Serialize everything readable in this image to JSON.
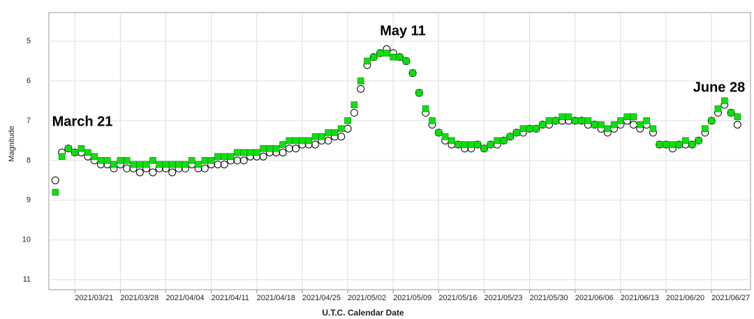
{
  "chart_data": {
    "type": "scatter",
    "y_reversed": true,
    "grid": true,
    "x_label": "U.T.C. Calendar Date",
    "y_label": "Magnitude",
    "annotations": [
      "March 21",
      "May 11",
      "June 28"
    ],
    "xlim": [
      "2021/03/17",
      "2021/07/03"
    ],
    "xticks": [
      "2021/03/21",
      "2021/03/28",
      "2021/04/04",
      "2021/04/11",
      "2021/04/18",
      "2021/04/25",
      "2021/05/02",
      "2021/05/09",
      "2021/05/16",
      "2021/05/23",
      "2021/05/30",
      "2021/06/06",
      "2021/06/13",
      "2021/06/20",
      "2021/06/27"
    ],
    "ylim": [
      11.25,
      4.28
    ],
    "yticks": [
      5,
      6,
      7,
      8,
      9,
      10,
      11
    ],
    "x": [
      "2021/03/18",
      "2021/03/19",
      "2021/03/20",
      "2021/03/21",
      "2021/03/22",
      "2021/03/23",
      "2021/03/24",
      "2021/03/25",
      "2021/03/26",
      "2021/03/27",
      "2021/03/28",
      "2021/03/29",
      "2021/03/30",
      "2021/03/31",
      "2021/04/01",
      "2021/04/02",
      "2021/04/03",
      "2021/04/04",
      "2021/04/05",
      "2021/04/06",
      "2021/04/07",
      "2021/04/08",
      "2021/04/09",
      "2021/04/10",
      "2021/04/11",
      "2021/04/12",
      "2021/04/13",
      "2021/04/14",
      "2021/04/15",
      "2021/04/16",
      "2021/04/17",
      "2021/04/18",
      "2021/04/19",
      "2021/04/20",
      "2021/04/21",
      "2021/04/22",
      "2021/04/23",
      "2021/04/24",
      "2021/04/25",
      "2021/04/26",
      "2021/04/27",
      "2021/04/28",
      "2021/04/29",
      "2021/04/30",
      "2021/05/01",
      "2021/05/02",
      "2021/05/03",
      "2021/05/04",
      "2021/05/05",
      "2021/05/06",
      "2021/05/07",
      "2021/05/08",
      "2021/05/09",
      "2021/05/10",
      "2021/05/11",
      "2021/05/12",
      "2021/05/13",
      "2021/05/14",
      "2021/05/15",
      "2021/05/16",
      "2021/05/17",
      "2021/05/18",
      "2021/05/19",
      "2021/05/20",
      "2021/05/21",
      "2021/05/22",
      "2021/05/23",
      "2021/05/24",
      "2021/05/25",
      "2021/05/26",
      "2021/05/27",
      "2021/05/28",
      "2021/05/29",
      "2021/05/30",
      "2021/05/31",
      "2021/06/01",
      "2021/06/02",
      "2021/06/03",
      "2021/06/04",
      "2021/06/05",
      "2021/06/06",
      "2021/06/07",
      "2021/06/08",
      "2021/06/09",
      "2021/06/10",
      "2021/06/11",
      "2021/06/12",
      "2021/06/13",
      "2021/06/14",
      "2021/06/15",
      "2021/06/16",
      "2021/06/17",
      "2021/06/18",
      "2021/06/19",
      "2021/06/20",
      "2021/06/21",
      "2021/06/22",
      "2021/06/23",
      "2021/06/24",
      "2021/06/25",
      "2021/06/26",
      "2021/06/27",
      "2021/06/28",
      "2021/06/29",
      "2021/06/30",
      "2021/07/01"
    ],
    "series": [
      {
        "marker": "circle",
        "color": "#000000",
        "values": [
          8.5,
          7.8,
          7.7,
          7.8,
          7.8,
          7.9,
          8.0,
          8.1,
          8.1,
          8.2,
          8.1,
          8.2,
          8.2,
          8.3,
          8.2,
          8.3,
          8.2,
          8.2,
          8.3,
          8.2,
          8.2,
          8.1,
          8.2,
          8.2,
          8.1,
          8.1,
          8.1,
          8.0,
          8.0,
          8.0,
          7.9,
          7.9,
          7.9,
          7.8,
          7.8,
          7.8,
          7.7,
          7.7,
          7.6,
          7.6,
          7.6,
          7.5,
          7.5,
          7.4,
          7.4,
          7.2,
          6.8,
          6.2,
          5.6,
          5.4,
          5.3,
          5.2,
          5.3,
          5.4,
          5.5,
          5.8,
          6.3,
          6.8,
          7.1,
          7.3,
          7.5,
          7.6,
          7.6,
          7.7,
          7.7,
          7.6,
          7.7,
          7.6,
          7.6,
          7.5,
          7.4,
          7.3,
          7.3,
          7.2,
          7.2,
          7.1,
          7.1,
          7.0,
          7.0,
          7.0,
          7.0,
          7.0,
          7.1,
          7.1,
          7.2,
          7.3,
          7.2,
          7.1,
          7.0,
          7.1,
          7.2,
          7.1,
          7.3,
          7.6,
          7.6,
          7.7,
          7.6,
          7.6,
          7.6,
          7.5,
          7.3,
          7.0,
          6.8,
          6.6,
          6.8,
          7.1
        ]
      },
      {
        "marker": "square",
        "color": "#11dd11",
        "values": [
          8.8,
          7.9,
          7.7,
          7.8,
          7.7,
          7.8,
          7.9,
          8.0,
          8.0,
          8.1,
          8.0,
          8.0,
          8.1,
          8.1,
          8.1,
          8.0,
          8.1,
          8.1,
          8.1,
          8.1,
          8.1,
          8.0,
          8.1,
          8.0,
          8.0,
          7.9,
          7.9,
          7.9,
          7.8,
          7.8,
          7.8,
          7.8,
          7.7,
          7.7,
          7.7,
          7.6,
          7.5,
          7.5,
          7.5,
          7.5,
          7.4,
          7.4,
          7.3,
          7.3,
          7.2,
          7.0,
          6.6,
          6.0,
          5.5,
          5.4,
          5.3,
          5.3,
          5.4,
          5.4,
          5.5,
          5.8,
          6.3,
          6.7,
          7.0,
          7.3,
          7.4,
          7.5,
          7.6,
          7.6,
          7.6,
          7.6,
          7.7,
          7.6,
          7.5,
          7.5,
          7.4,
          7.3,
          7.2,
          7.2,
          7.2,
          7.1,
          7.0,
          7.0,
          6.9,
          6.9,
          7.0,
          7.0,
          7.0,
          7.1,
          7.1,
          7.2,
          7.1,
          7.0,
          6.9,
          6.9,
          7.1,
          7.0,
          7.2,
          7.6,
          7.6,
          7.6,
          7.6,
          7.5,
          7.6,
          7.5,
          7.2,
          7.0,
          6.7,
          6.5,
          6.8,
          6.9
        ]
      }
    ]
  }
}
